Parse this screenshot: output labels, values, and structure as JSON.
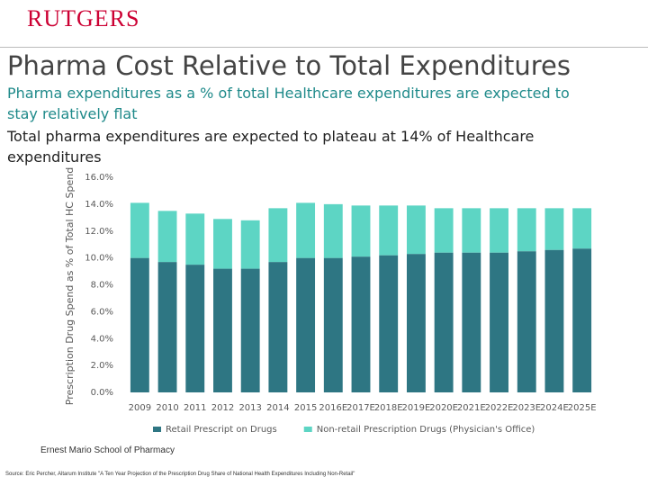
{
  "slide": {
    "logo": "RUTGERS",
    "title": "Pharma Cost Relative to Total Expenditures",
    "bullets": [
      "Pharma expenditures as a % of total Healthcare expenditures are expected to stay relatively flat",
      "Total pharma expenditures are expected to plateau at 14% of Healthcare expenditures"
    ],
    "footer": "Ernest Mario School of Pharmacy",
    "source": "Source: Eric Percher, Altarum Institute \"A Ten Year Projection of the Prescription Drug Share of National Health Expenditures Including Non-Retail\""
  },
  "chart_data": {
    "type": "stacked_bar",
    "y_label": "Prescription Drug Spend as % of Total HC Spend",
    "categories": [
      "2009",
      "2010",
      "2011",
      "2012",
      "2013",
      "2014",
      "2015",
      "2016E",
      "2017E",
      "2018E",
      "2019E",
      "2020E",
      "2021E",
      "2022E",
      "2023E",
      "2024E",
      "2025E"
    ],
    "series": [
      {
        "name": "Retail Prescript on Drugs",
        "color": "#2e7683",
        "values": [
          10.0,
          9.7,
          9.5,
          9.2,
          9.2,
          9.7,
          10.0,
          10.0,
          10.1,
          10.2,
          10.3,
          10.4,
          10.4,
          10.4,
          10.5,
          10.6,
          10.7
        ]
      },
      {
        "name": "Non-retail Prescription Drugs (Physician's Office)",
        "color": "#5dd5c4",
        "values": [
          4.1,
          3.8,
          3.8,
          3.7,
          3.6,
          4.0,
          4.1,
          4.0,
          3.8,
          3.7,
          3.6,
          3.3,
          3.3,
          3.3,
          3.2,
          3.1,
          3.0
        ]
      }
    ],
    "ylim": [
      0,
      16
    ],
    "yticks": [
      {
        "value": 0,
        "label": "0.0%"
      },
      {
        "value": 2,
        "label": "2.0%"
      },
      {
        "value": 4,
        "label": "4.0%"
      },
      {
        "value": 6,
        "label": "6.0%"
      },
      {
        "value": 8,
        "label": "8.0%"
      },
      {
        "value": 10,
        "label": "10.0%"
      },
      {
        "value": 12,
        "label": "12.0%"
      },
      {
        "value": 14,
        "label": "14.0%"
      },
      {
        "value": 16,
        "label": "16.0%"
      }
    ],
    "legend": "bottom"
  }
}
